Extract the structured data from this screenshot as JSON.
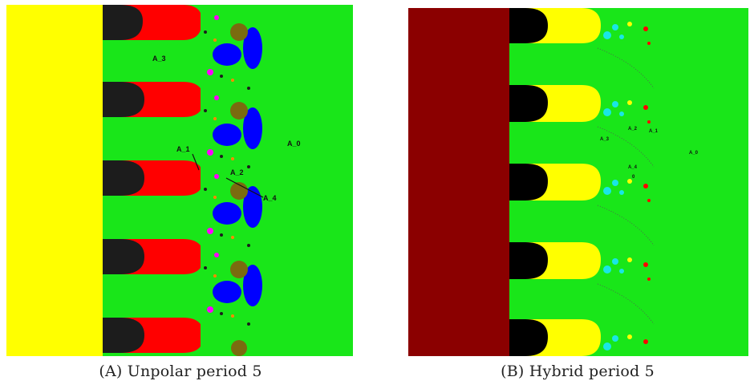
{
  "figure": {
    "panel_a": {
      "caption_letter": "(A)",
      "caption_text": "Unpolar period 5",
      "labels": {
        "a0": "A_0",
        "a1": "A_1",
        "a2": "A_2",
        "a3": "A_3",
        "a4": "A_4"
      }
    },
    "panel_b": {
      "caption_letter": "(B)",
      "caption_text": "Hybrid period 5",
      "labels": {
        "a0": "A_0",
        "a1": "A_1",
        "a2": "A_2",
        "a3": "A_3",
        "a4": "A_4",
        "b0": "0"
      }
    }
  },
  "colors": {
    "green": "#19e619",
    "yellow": "#ffff00",
    "red": "#ff0000",
    "black": "#1c1c1c",
    "blue": "#0000ff",
    "olive": "#7a6b0f",
    "magenta": "#ff00ff",
    "cyan": "#19e6e6",
    "dark_red": "#8b0000"
  }
}
